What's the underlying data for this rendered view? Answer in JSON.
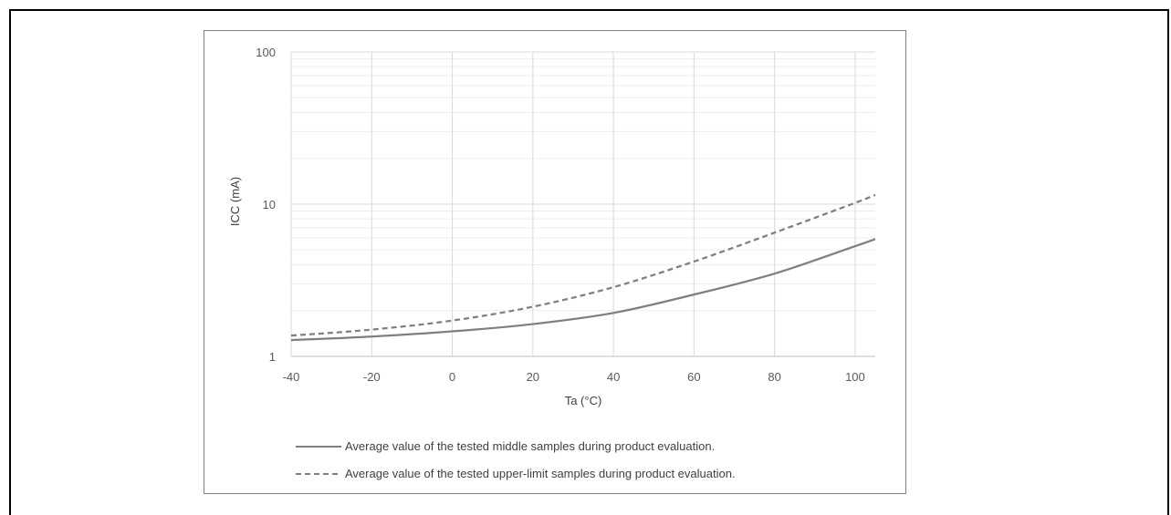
{
  "chart_data": {
    "type": "line",
    "title": "",
    "xlabel": "Ta (°C)",
    "ylabel": "ICC (mA)",
    "xlim": [
      -40,
      105
    ],
    "ylim": [
      1,
      100
    ],
    "y_scale": "log",
    "x_ticks": [
      -40,
      -20,
      0,
      20,
      40,
      60,
      80,
      100
    ],
    "y_ticks": [
      1,
      10,
      100
    ],
    "grid": true,
    "legend_position": "bottom",
    "series": [
      {
        "name": "Average value of the tested middle samples during product evaluation.",
        "style": "solid",
        "color": "#7f7f7f",
        "x": [
          -40,
          -20,
          0,
          20,
          40,
          60,
          80,
          100,
          105
        ],
        "y": [
          1.28,
          1.35,
          1.46,
          1.63,
          1.93,
          2.55,
          3.5,
          5.3,
          5.9
        ]
      },
      {
        "name": "Average value of the tested upper-limit samples during product evaluation.",
        "style": "dashed",
        "color": "#7f7f7f",
        "x": [
          -40,
          -20,
          0,
          20,
          40,
          60,
          80,
          100,
          105
        ],
        "y": [
          1.37,
          1.5,
          1.72,
          2.12,
          2.85,
          4.2,
          6.5,
          10.2,
          11.5
        ]
      }
    ]
  }
}
